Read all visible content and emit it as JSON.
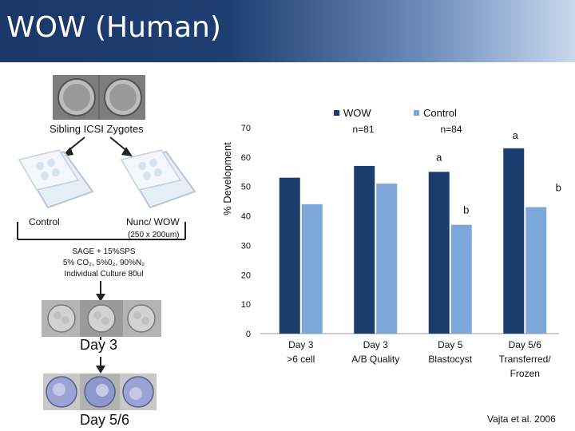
{
  "header": {
    "title": "WOW (Human)"
  },
  "left_panel": {
    "sibling_label": "Sibling ICSI Zygotes",
    "control_label": "Control",
    "nunc_label": "Nunc/ WOW",
    "nunc_dims": "(250 x 200um)",
    "culture_line1": "SAGE + 15%SPS",
    "culture_line2": "5% CO₂, 5%0₂, 90%N₂",
    "culture_line3": "Individual Culture 80ul",
    "day3_label": "Day 3",
    "day56_label": "Day 5/6"
  },
  "citation": "Vajta et al. 2006",
  "chart_data": {
    "type": "bar",
    "ylabel": "% Development",
    "ylim": [
      0,
      70
    ],
    "yticks": [
      0,
      10,
      20,
      30,
      40,
      50,
      60,
      70
    ],
    "grid": false,
    "legend_position": "top",
    "categories": [
      "Day 3\n>6 cell",
      "Day 3\nA/B Quality",
      "Day 5\nBlastocyst",
      "Day 5/6\nTransferred/\nFrozen"
    ],
    "series": [
      {
        "name": "WOW",
        "color": "#1b3d6e",
        "values": [
          53,
          57,
          55,
          63
        ],
        "n_label": "n=81"
      },
      {
        "name": "Control",
        "color": "#7ea7d9",
        "values": [
          44,
          51,
          37,
          43
        ],
        "n_label": "n=84"
      }
    ],
    "annotations": [
      {
        "text": "a",
        "category": 3,
        "series": 0
      },
      {
        "text": "b",
        "category": 3,
        "series": 1
      },
      {
        "text": "a",
        "category": 2,
        "series": 0
      },
      {
        "text": "b",
        "category": 2,
        "series": 1
      }
    ]
  }
}
